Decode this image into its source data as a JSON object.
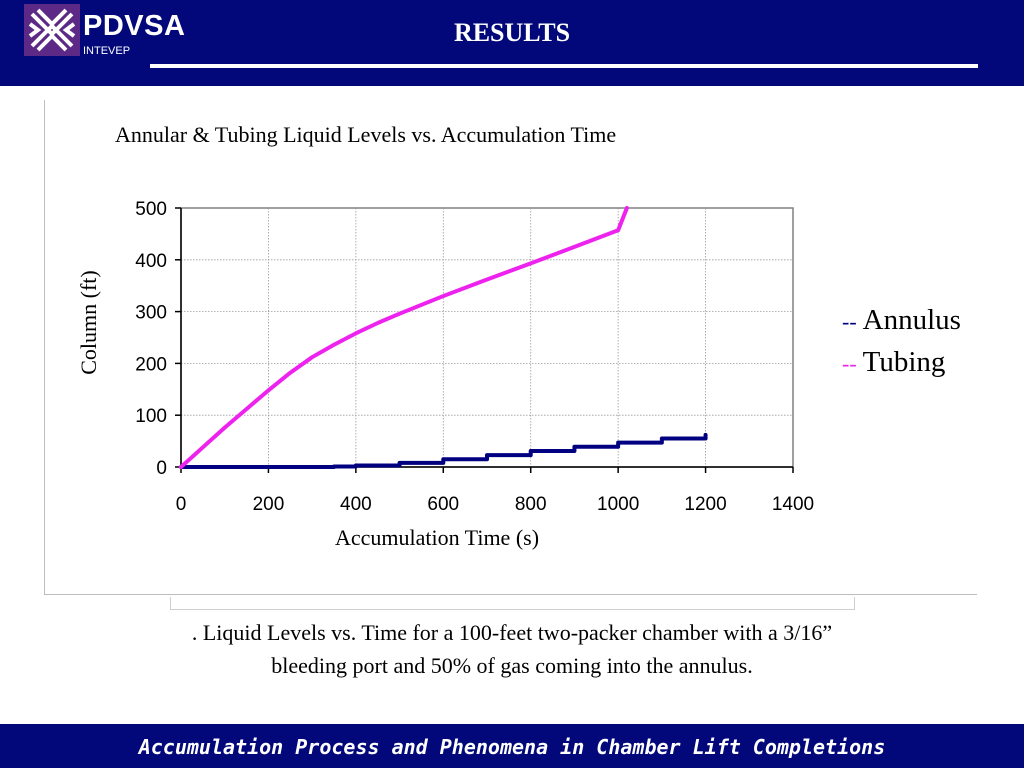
{
  "header": {
    "brand": "PDVSA",
    "sub_brand": "INTEVEP",
    "title": "RESULTS",
    "bg_color": "#02087a",
    "logo_color": "#5c2a86"
  },
  "chart_data": {
    "type": "line",
    "title": "Annular &  Tubing Liquid Levels vs. Accumulation Time",
    "xlabel": "Accumulation Time (s)",
    "ylabel": "Column (ft)",
    "xlim": [
      0,
      1400
    ],
    "ylim": [
      0,
      500
    ],
    "xticks": [
      "0",
      "200",
      "400",
      "600",
      "800",
      "1000",
      "1200",
      "1400"
    ],
    "yticks": [
      "0",
      "100",
      "200",
      "300",
      "400",
      "500"
    ],
    "grid": true,
    "legend_position": "right",
    "series": [
      {
        "name": "Annulus",
        "color": "#000080",
        "x": [
          0,
          100,
          200,
          300,
          350,
          400,
          500,
          600,
          700,
          800,
          900,
          1000,
          1100,
          1200
        ],
        "y": [
          0,
          0,
          0,
          0,
          1,
          3,
          8,
          15,
          23,
          31,
          39,
          47,
          55,
          62
        ]
      },
      {
        "name": "Tubing",
        "color": "#ee22ee",
        "x": [
          0,
          50,
          100,
          150,
          200,
          250,
          300,
          350,
          400,
          450,
          500,
          600,
          700,
          800,
          900,
          1000,
          1020
        ],
        "y": [
          0,
          38,
          76,
          112,
          148,
          182,
          212,
          236,
          258,
          278,
          296,
          330,
          362,
          393,
          425,
          457,
          500
        ]
      }
    ]
  },
  "legend": {
    "dash": "--",
    "annulus": "Annulus",
    "tubing": "Tubing",
    "annulus_color": "#000080",
    "tubing_color": "#ee22ee"
  },
  "caption": {
    "line1": ". Liquid Levels vs. Time for a 100-feet two-packer chamber with a 3/16”",
    "line2": "bleeding port and 50% of gas coming into the annulus."
  },
  "footer": {
    "text": "Accumulation Process and Phenomena in Chamber Lift Completions"
  }
}
